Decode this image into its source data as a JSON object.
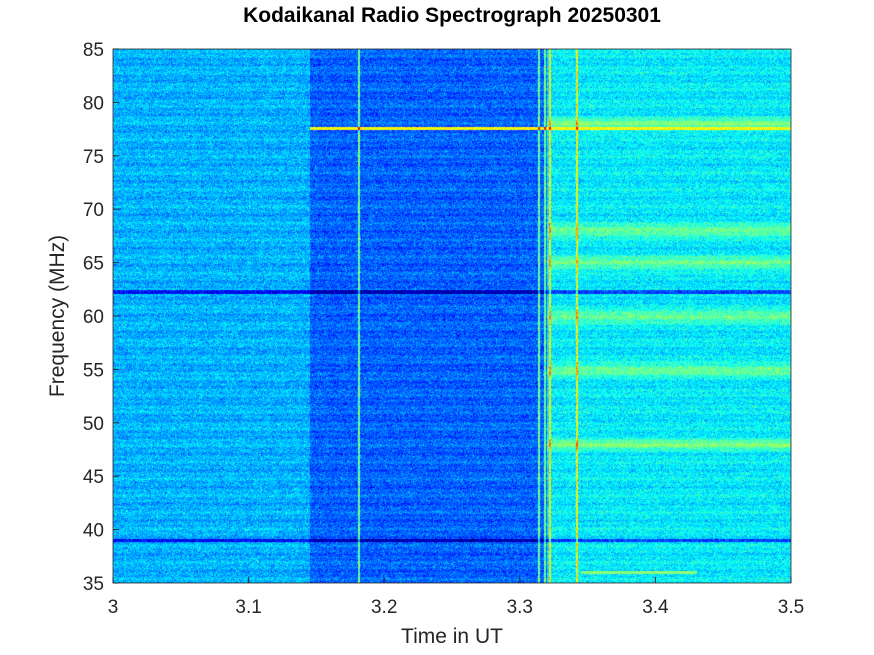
{
  "chart_data": {
    "type": "heatmap",
    "title": "Kodaikanal Radio Spectrograph  20250301",
    "xlabel": "Time in UT",
    "ylabel": "Frequency (MHz)",
    "xlim": [
      3.0,
      3.5
    ],
    "ylim": [
      35,
      85
    ],
    "x_ticks": [
      "3",
      "3.1",
      "3.2",
      "3.3",
      "3.4",
      "3.5"
    ],
    "x_tick_values": [
      3.0,
      3.1,
      3.2,
      3.3,
      3.4,
      3.5
    ],
    "y_ticks": [
      "35",
      "40",
      "45",
      "50",
      "55",
      "60",
      "65",
      "70",
      "75",
      "80",
      "85"
    ],
    "y_tick_values": [
      35,
      40,
      45,
      50,
      55,
      60,
      65,
      70,
      75,
      80,
      85
    ],
    "colormap": "jet",
    "background_level": 0.3,
    "features": {
      "darker_segment": {
        "t_start": 3.145,
        "t_end": 3.32,
        "level": 0.22
      },
      "brighter_segment": {
        "t_start": 3.32,
        "t_end": 3.5,
        "level": 0.36
      },
      "dark_horizontal_lines_mhz": [
        62.3,
        39.0
      ],
      "bright_horizontal_line": {
        "freq_mhz": 77.6,
        "t_start": 3.145,
        "t_end": 3.5
      },
      "bright_bands_mhz": [
        78.0,
        68.0,
        65.0,
        60.0,
        55.0,
        48.0
      ],
      "vertical_lines_ut": [
        3.181,
        3.314,
        3.318,
        3.322,
        3.342
      ],
      "short_segment": {
        "freq_mhz": 36.0,
        "t_start": 3.345,
        "t_end": 3.43
      }
    }
  }
}
